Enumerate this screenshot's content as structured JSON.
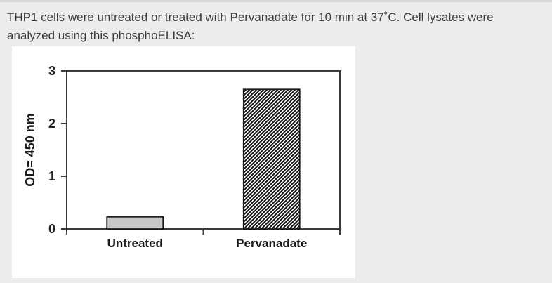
{
  "page": {
    "description_lines": [
      "THP1 cells were untreated or treated with Pervanadate for 10 min at 37˚C. Cell lysates were",
      "analyzed using this phosphoELISA:"
    ]
  },
  "chart_data": {
    "type": "bar",
    "categories": [
      "Untreated",
      "Pervanadate"
    ],
    "values": [
      0.23,
      2.65
    ],
    "title": "",
    "xlabel": "",
    "ylabel": "OD= 450 nm",
    "ylim": [
      0,
      3
    ],
    "yticks": [
      0,
      1,
      2,
      3
    ],
    "grid": false,
    "legend": false,
    "frame": "full-box",
    "bar_styles": [
      {
        "fill": "#c9c9c9",
        "pattern": "solid"
      },
      {
        "fill": "#ffffff",
        "pattern": "diagonal-hatch"
      }
    ]
  },
  "colors": {
    "page_background": "#ececec",
    "top_border": "#d8d8d8",
    "panel_background": "#ffffff",
    "text": "#3b3b3b",
    "axis": "#3a3a3a",
    "bar_border": "#1a1a1a",
    "hatch": "#111111"
  }
}
